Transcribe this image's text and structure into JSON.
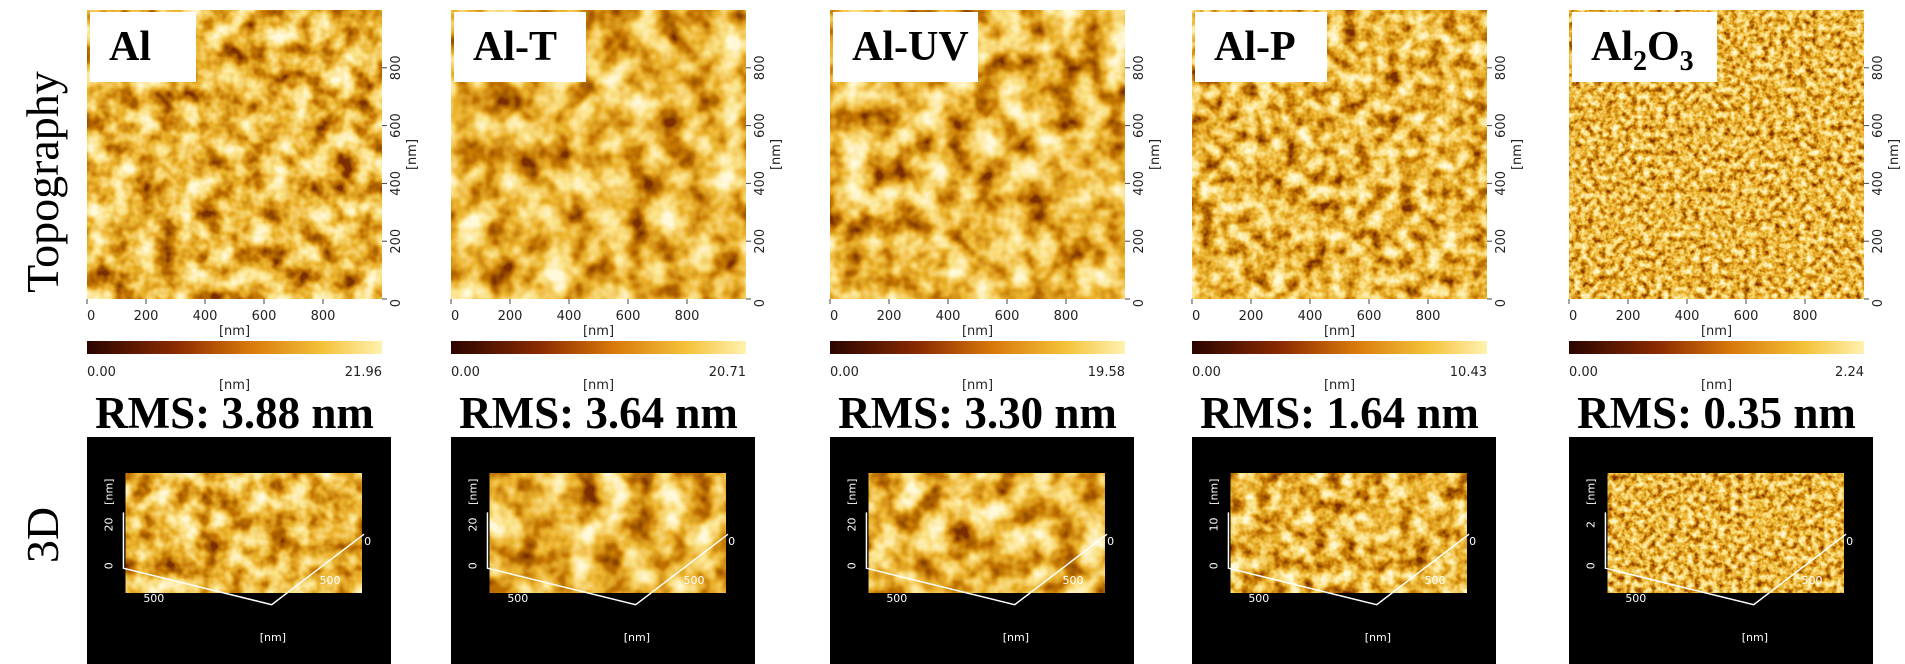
{
  "row_labels": [
    "Topography",
    "3D"
  ],
  "panels": [
    {
      "label": [
        "Al"
      ],
      "x_ticks": [
        0,
        200,
        400,
        600,
        800
      ],
      "y_ticks": [
        0,
        200,
        400,
        600,
        800
      ],
      "axis_unit": "[nm]",
      "colorbar": {
        "min": "0.00",
        "max": "21.96",
        "unit": "[nm]"
      },
      "rms": "RMS: 3.88 nm",
      "view3d": {
        "z_ticks": [
          0,
          20
        ],
        "z_unit": "[nm]",
        "front_tick": 500,
        "right_ticks": [
          0,
          500
        ],
        "unit": "[nm]"
      }
    },
    {
      "label": [
        "Al-T"
      ],
      "x_ticks": [
        0,
        200,
        400,
        600,
        800
      ],
      "y_ticks": [
        0,
        200,
        400,
        600,
        800
      ],
      "axis_unit": "[nm]",
      "colorbar": {
        "min": "0.00",
        "max": "20.71",
        "unit": "[nm]"
      },
      "rms": "RMS: 3.64 nm",
      "view3d": {
        "z_ticks": [
          0,
          20
        ],
        "z_unit": "[nm]",
        "front_tick": 500,
        "right_ticks": [
          0,
          500
        ],
        "unit": "[nm]"
      }
    },
    {
      "label": [
        "Al-UV"
      ],
      "x_ticks": [
        0,
        200,
        400,
        600,
        800
      ],
      "y_ticks": [
        0,
        200,
        400,
        600,
        800
      ],
      "axis_unit": "[nm]",
      "colorbar": {
        "min": "0.00",
        "max": "19.58",
        "unit": "[nm]"
      },
      "rms": "RMS: 3.30 nm",
      "view3d": {
        "z_ticks": [
          0,
          20
        ],
        "z_unit": "[nm]",
        "front_tick": 500,
        "right_ticks": [
          0,
          500
        ],
        "unit": "[nm]"
      }
    },
    {
      "label": [
        "Al-P"
      ],
      "x_ticks": [
        0,
        200,
        400,
        600,
        800
      ],
      "y_ticks": [
        0,
        200,
        400,
        600,
        800
      ],
      "axis_unit": "[nm]",
      "colorbar": {
        "min": "0.00",
        "max": "10.43",
        "unit": "[nm]"
      },
      "rms": "RMS: 1.64 nm",
      "view3d": {
        "z_ticks": [
          0,
          10
        ],
        "z_unit": "[nm]",
        "front_tick": 500,
        "right_ticks": [
          0,
          500
        ],
        "unit": "[nm]"
      }
    },
    {
      "label": [
        "Al",
        "2",
        "O",
        "3"
      ],
      "x_ticks": [
        0,
        200,
        400,
        600,
        800
      ],
      "y_ticks": [
        0,
        200,
        400,
        600,
        800
      ],
      "axis_unit": "[nm]",
      "colorbar": {
        "min": "0.00",
        "max": "2.24",
        "unit": "[nm]"
      },
      "rms": "RMS: 0.35 nm",
      "view3d": {
        "z_ticks": [
          0,
          2
        ],
        "z_unit": "[nm]",
        "front_tick": 500,
        "right_ticks": [
          0,
          500
        ],
        "unit": "[nm]"
      }
    }
  ]
}
